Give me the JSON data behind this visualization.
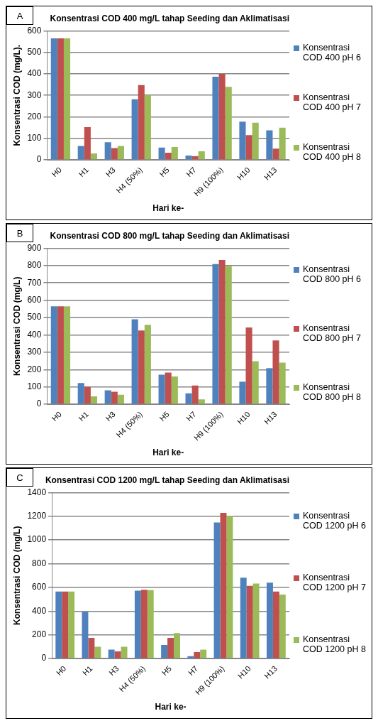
{
  "chart_data": [
    {
      "type": "bar",
      "title": "Konsentrasi COD 400 mg/L tahap Seeding dan Aklimatisasi",
      "xlabel": "Hari ke-",
      "ylabel": "Konsentrasi COD (mg/L).",
      "annotations": [
        "A"
      ],
      "categories": [
        "H0",
        "H1",
        "H3",
        "H4 (50%)",
        "H5",
        "H7",
        "H9 (100%)",
        "H10",
        "H13"
      ],
      "ylim": [
        0,
        600
      ],
      "yticks": [
        0,
        100,
        200,
        300,
        400,
        500,
        600
      ],
      "grid": "y",
      "legend": "right",
      "series": [
        {
          "name": "Konsentrasi COD 400 pH 6",
          "color": "#4f81bd",
          "values": [
            565,
            65,
            82,
            282,
            57,
            20,
            387,
            178,
            137
          ]
        },
        {
          "name": "Konsentrasi COD 400 pH 7",
          "color": "#c0504d",
          "values": [
            565,
            152,
            55,
            348,
            33,
            18,
            400,
            115,
            52
          ]
        },
        {
          "name": "Konsentrasi COD 400 pH 8",
          "color": "#9bbb59",
          "values": [
            565,
            30,
            65,
            302,
            60,
            40,
            340,
            173,
            150
          ]
        }
      ]
    },
    {
      "type": "bar",
      "title": "Konsentrasi COD 800 mg/L tahap Seeding dan Aklimatisasi",
      "xlabel": "Hari ke-",
      "ylabel": "Konsentrasi COD (mg/L)",
      "annotations": [
        "B"
      ],
      "categories": [
        "H0",
        "H1",
        "H3",
        "H4 (50%)",
        "H5",
        "H7",
        "H9 (100%)",
        "H10",
        "H13"
      ],
      "ylim": [
        0,
        900
      ],
      "yticks": [
        0,
        100,
        200,
        300,
        400,
        500,
        600,
        700,
        800,
        900
      ],
      "grid": "y",
      "legend": "right",
      "series": [
        {
          "name": "Konsentrasi COD 800 pH 6",
          "color": "#4f81bd",
          "values": [
            565,
            122,
            80,
            490,
            170,
            63,
            808,
            130,
            208
          ]
        },
        {
          "name": "Konsentrasi COD 800 pH 7",
          "color": "#c0504d",
          "values": [
            565,
            102,
            72,
            425,
            183,
            108,
            832,
            443,
            368
          ]
        },
        {
          "name": "Konsentrasi COD 800 pH 8",
          "color": "#9bbb59",
          "values": [
            565,
            45,
            55,
            458,
            160,
            28,
            798,
            248,
            240
          ]
        }
      ]
    },
    {
      "type": "bar",
      "title": "Konsentrasi COD 1200 mg/L tahap Seeding dan Aklimatisasi",
      "xlabel": "Hari ke-",
      "ylabel": "Konsentrasi COD (mg/L)",
      "annotations": [
        "C"
      ],
      "categories": [
        "H0",
        "H1",
        "H3",
        "H4 (50%)",
        "H5",
        "H7",
        "H9 (100%)",
        "H10",
        "H13"
      ],
      "ylim": [
        0,
        1400
      ],
      "yticks": [
        0,
        200,
        400,
        600,
        800,
        1000,
        1200,
        1400
      ],
      "grid": "y",
      "legend": "right",
      "series": [
        {
          "name": "Konsentrasi COD 1200 pH 6",
          "color": "#4f81bd",
          "values": [
            565,
            395,
            75,
            572,
            115,
            20,
            1148,
            682,
            640
          ]
        },
        {
          "name": "Konsentrasi COD 1200 pH 7",
          "color": "#c0504d",
          "values": [
            565,
            175,
            60,
            580,
            175,
            55,
            1228,
            613,
            565
          ]
        },
        {
          "name": "Konsentrasi COD 1200 pH 8",
          "color": "#9bbb59",
          "values": [
            565,
            100,
            100,
            577,
            215,
            75,
            1205,
            632,
            540
          ]
        }
      ]
    }
  ]
}
